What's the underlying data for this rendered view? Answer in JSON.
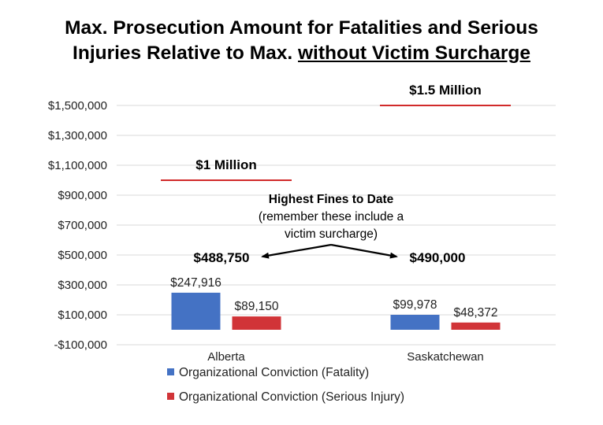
{
  "title": {
    "line1": "Max. Prosecution Amount for Fatalities and Serious",
    "line2_plain": "Injuries Relative to Max. ",
    "line2_underlined": "without Victim Surcharge"
  },
  "chart_data": {
    "type": "bar",
    "categories": [
      "Alberta",
      "Saskatchewan"
    ],
    "series": [
      {
        "name": "Organizational Conviction (Fatality)",
        "values": [
          247916,
          99978
        ],
        "labels": [
          "$247,916",
          "$99,978"
        ],
        "color": "#4472C4"
      },
      {
        "name": "Organizational Conviction (Serious Injury)",
        "values": [
          89150,
          48372
        ],
        "labels": [
          "$89,150",
          "$48,372"
        ],
        "color": "#D13438"
      }
    ],
    "ylim": [
      -100000,
      1500000
    ],
    "yticks": [
      -100000,
      100000,
      300000,
      500000,
      700000,
      900000,
      1100000,
      1300000,
      1500000
    ],
    "ytick_labels": [
      "-$100,000",
      "$100,000",
      "$300,000",
      "$500,000",
      "$700,000",
      "$900,000",
      "$1,100,000",
      "$1,300,000",
      "$1,500,000"
    ],
    "grid": true,
    "legend_position": "bottom",
    "max_lines": [
      {
        "category": "Alberta",
        "value": 1000000,
        "label": "$1 Million",
        "color": "#D12A2A"
      },
      {
        "category": "Saskatchewan",
        "value": 1500000,
        "label": "$1.5 Million",
        "color": "#D12A2A"
      }
    ],
    "annotation": {
      "title": "Highest Fines to Date",
      "body_line1": "(remember these include a",
      "body_line2": "victim surcharge)",
      "fines": [
        {
          "category": "Alberta",
          "value": 488750,
          "label": "$488,750"
        },
        {
          "category": "Saskatchewan",
          "value": 490000,
          "label": "$490,000"
        }
      ]
    }
  }
}
